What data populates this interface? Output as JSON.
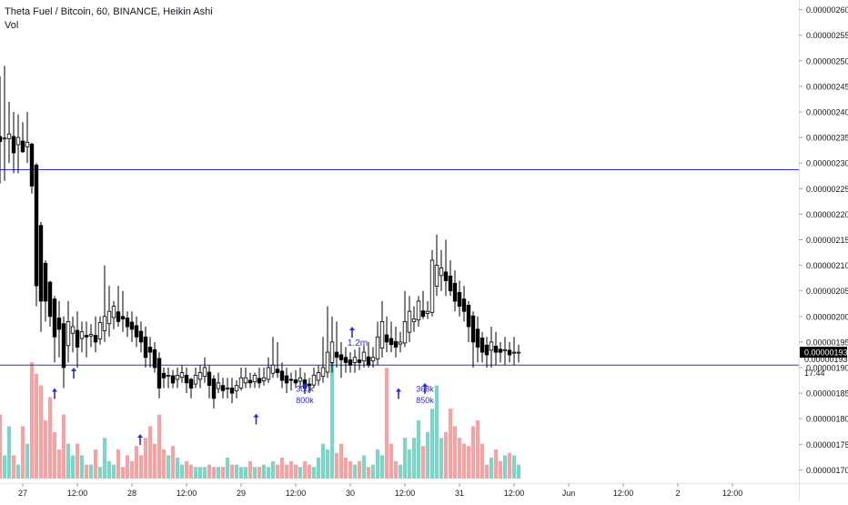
{
  "legend": {
    "title": "Theta Fuel / Bitcoin, 60, BINANCE, Heikin Ashi",
    "volume_label": "Vol"
  },
  "colors": {
    "up": "#ffffff",
    "down": "#000000",
    "wick": "#000000",
    "vol_up": "#7fd4c7",
    "vol_down": "#f2a3a3",
    "hline": "#2f2fd8",
    "arrow": "#2b2bd6",
    "annotation": "#2b2bd6",
    "axis_text": "#131722",
    "price_tag_bg": "#000000",
    "price_tag_text": "#ffffff"
  },
  "chart_data": {
    "type": "candlestick",
    "y_axis": {
      "range": [
        1.69e-06,
        2.61e-06
      ],
      "ticks": [
        "0.00000170",
        "0.00000175",
        "0.00000180",
        "0.00000185",
        "0.00000190",
        "0.00000195",
        "0.00000200",
        "0.00000205",
        "0.00000210",
        "0.00000215",
        "0.00000220",
        "0.00000225",
        "0.00000230",
        "0.00000235",
        "0.00000240",
        "0.00000245",
        "0.00000250",
        "0.00000255",
        "0.00000260"
      ]
    },
    "x_axis": {
      "hours_visible": 152,
      "ticks": [
        {
          "hour": 6,
          "label": "27"
        },
        {
          "hour": 18,
          "label": "12:00"
        },
        {
          "hour": 30,
          "label": "28"
        },
        {
          "hour": 42,
          "label": "12:00"
        },
        {
          "hour": 54,
          "label": "29"
        },
        {
          "hour": 66,
          "label": "12:00"
        },
        {
          "hour": 78,
          "label": "30"
        },
        {
          "hour": 90,
          "label": "12:00"
        },
        {
          "hour": 102,
          "label": "31"
        },
        {
          "hour": 114,
          "label": "12:00"
        },
        {
          "hour": 126,
          "label": "Jun"
        },
        {
          "hour": 138,
          "label": "12:00"
        },
        {
          "hour": 150,
          "label": "2"
        },
        {
          "hour": 162,
          "label": "12:00"
        }
      ]
    },
    "price_labels": [
      {
        "value": 1.93e-06,
        "label": "0.00000193",
        "type": "last-price"
      },
      {
        "value": 1.917e-06,
        "label": "0.00000193",
        "type": "countdown-price"
      },
      {
        "value": 1.89e-06,
        "label": "17:44",
        "type": "countdown"
      }
    ],
    "horizontal_lines": [
      2.287e-06,
      1.905e-06
    ],
    "annotations": [
      {
        "hour": 13.0,
        "price": 1.86e-06,
        "direction": "up",
        "text": ""
      },
      {
        "hour": 17.2,
        "price": 1.9e-06,
        "direction": "up",
        "text": ""
      },
      {
        "hour": 31.8,
        "price": 1.77e-06,
        "direction": "up",
        "text": ""
      },
      {
        "hour": 57.3,
        "price": 1.81e-06,
        "direction": "up",
        "text": ""
      },
      {
        "hour": 68.0,
        "price": 1.87e-06,
        "direction": "up",
        "text": "800k"
      },
      {
        "hour": 68.0,
        "price": 1.86e-06,
        "direction": "none",
        "text": "300k"
      },
      {
        "hour": 78.4,
        "price": 1.98e-06,
        "direction": "up",
        "text": ""
      },
      {
        "hour": 79.6,
        "price": 1.95e-06,
        "direction": "none",
        "text": "1.2m"
      },
      {
        "hour": 88.6,
        "price": 1.86e-06,
        "direction": "up",
        "text": ""
      },
      {
        "hour": 94.4,
        "price": 1.87e-06,
        "direction": "up",
        "text": "850k"
      },
      {
        "hour": 94.4,
        "price": 1.86e-06,
        "direction": "none",
        "text": "368k"
      }
    ],
    "volume_max": 100,
    "candles": [
      {
        "o": 2.352,
        "h": 2.47,
        "l": 2.26,
        "c": 2.342,
        "v": 55
      },
      {
        "o": 2.347,
        "h": 2.49,
        "l": 2.265,
        "c": 2.349,
        "v": 20
      },
      {
        "o": 2.348,
        "h": 2.42,
        "l": 2.3,
        "c": 2.357,
        "v": 45
      },
      {
        "o": 2.352,
        "h": 2.4,
        "l": 2.28,
        "c": 2.32,
        "v": 20
      },
      {
        "o": 2.336,
        "h": 2.395,
        "l": 2.28,
        "c": 2.35,
        "v": 12
      },
      {
        "o": 2.343,
        "h": 2.38,
        "l": 2.32,
        "c": 2.322,
        "v": 45
      },
      {
        "o": 2.332,
        "h": 2.4,
        "l": 2.3,
        "c": 2.341,
        "v": 30
      },
      {
        "o": 2.337,
        "h": 2.34,
        "l": 2.24,
        "c": 2.255,
        "v": 100
      },
      {
        "o": 2.296,
        "h": 2.3,
        "l": 2.02,
        "c": 2.06,
        "v": 90
      },
      {
        "o": 2.178,
        "h": 2.185,
        "l": 1.97,
        "c": 2.03,
        "v": 80
      },
      {
        "o": 2.104,
        "h": 2.11,
        "l": 1.99,
        "c": 2.03,
        "v": 50
      },
      {
        "o": 2.067,
        "h": 2.07,
        "l": 1.98,
        "c": 2.0,
        "v": 70
      },
      {
        "o": 2.034,
        "h": 2.04,
        "l": 1.91,
        "c": 1.96,
        "v": 40
      },
      {
        "o": 1.997,
        "h": 2.03,
        "l": 1.92,
        "c": 1.975,
        "v": 25
      },
      {
        "o": 1.986,
        "h": 2.0,
        "l": 1.86,
        "c": 1.9,
        "v": 55
      },
      {
        "o": 1.943,
        "h": 2.03,
        "l": 1.91,
        "c": 1.99,
        "v": 30
      },
      {
        "o": 1.967,
        "h": 2.0,
        "l": 1.93,
        "c": 1.98,
        "v": 20
      },
      {
        "o": 1.973,
        "h": 2.01,
        "l": 1.9,
        "c": 1.94,
        "v": 30
      },
      {
        "o": 1.957,
        "h": 1.99,
        "l": 1.93,
        "c": 1.97,
        "v": 20
      },
      {
        "o": 1.963,
        "h": 1.99,
        "l": 1.92,
        "c": 1.96,
        "v": 12
      },
      {
        "o": 1.962,
        "h": 1.985,
        "l": 1.94,
        "c": 1.965,
        "v": 12
      },
      {
        "o": 1.963,
        "h": 2.0,
        "l": 1.93,
        "c": 1.95,
        "v": 25
      },
      {
        "o": 1.956,
        "h": 2.0,
        "l": 1.945,
        "c": 1.988,
        "v": 10
      },
      {
        "o": 1.972,
        "h": 2.1,
        "l": 1.95,
        "c": 2.0,
        "v": 35
      },
      {
        "o": 1.986,
        "h": 2.06,
        "l": 1.96,
        "c": 2.01,
        "v": 15
      },
      {
        "o": 1.998,
        "h": 2.03,
        "l": 1.975,
        "c": 2.02,
        "v": 12
      },
      {
        "o": 2.009,
        "h": 2.06,
        "l": 1.98,
        "c": 1.99,
        "v": 25
      },
      {
        "o": 2.0,
        "h": 2.05,
        "l": 1.97,
        "c": 1.995,
        "v": 10
      },
      {
        "o": 1.997,
        "h": 2.01,
        "l": 1.96,
        "c": 1.98,
        "v": 20
      },
      {
        "o": 1.989,
        "h": 2.01,
        "l": 1.95,
        "c": 1.975,
        "v": 15
      },
      {
        "o": 1.982,
        "h": 2.0,
        "l": 1.94,
        "c": 1.96,
        "v": 28
      },
      {
        "o": 1.971,
        "h": 1.99,
        "l": 1.93,
        "c": 1.95,
        "v": 20
      },
      {
        "o": 1.96,
        "h": 1.98,
        "l": 1.9,
        "c": 1.92,
        "v": 35
      },
      {
        "o": 1.94,
        "h": 1.96,
        "l": 1.9,
        "c": 1.93,
        "v": 45
      },
      {
        "o": 1.935,
        "h": 1.95,
        "l": 1.89,
        "c": 1.9,
        "v": 30
      },
      {
        "o": 1.918,
        "h": 1.93,
        "l": 1.84,
        "c": 1.86,
        "v": 55
      },
      {
        "o": 1.889,
        "h": 1.9,
        "l": 1.86,
        "c": 1.88,
        "v": 25
      },
      {
        "o": 1.884,
        "h": 1.9,
        "l": 1.86,
        "c": 1.885,
        "v": 20
      },
      {
        "o": 1.884,
        "h": 1.895,
        "l": 1.86,
        "c": 1.87,
        "v": 28
      },
      {
        "o": 1.877,
        "h": 1.9,
        "l": 1.86,
        "c": 1.885,
        "v": 18
      },
      {
        "o": 1.881,
        "h": 1.905,
        "l": 1.87,
        "c": 1.89,
        "v": 12
      },
      {
        "o": 1.885,
        "h": 1.9,
        "l": 1.85,
        "c": 1.87,
        "v": 15
      },
      {
        "o": 1.877,
        "h": 1.88,
        "l": 1.84,
        "c": 1.86,
        "v": 12
      },
      {
        "o": 1.868,
        "h": 1.9,
        "l": 1.86,
        "c": 1.885,
        "v": 10
      },
      {
        "o": 1.877,
        "h": 1.905,
        "l": 1.86,
        "c": 1.89,
        "v": 10
      },
      {
        "o": 1.883,
        "h": 1.92,
        "l": 1.87,
        "c": 1.9,
        "v": 10
      },
      {
        "o": 1.891,
        "h": 1.905,
        "l": 1.84,
        "c": 1.865,
        "v": 12
      },
      {
        "o": 1.878,
        "h": 1.885,
        "l": 1.82,
        "c": 1.84,
        "v": 10
      },
      {
        "o": 1.859,
        "h": 1.89,
        "l": 1.85,
        "c": 1.87,
        "v": 10
      },
      {
        "o": 1.865,
        "h": 1.88,
        "l": 1.84,
        "c": 1.855,
        "v": 10
      },
      {
        "o": 1.86,
        "h": 1.88,
        "l": 1.84,
        "c": 1.86,
        "v": 18
      },
      {
        "o": 1.86,
        "h": 1.88,
        "l": 1.83,
        "c": 1.85,
        "v": 12
      },
      {
        "o": 1.855,
        "h": 1.875,
        "l": 1.84,
        "c": 1.865,
        "v": 12
      },
      {
        "o": 1.86,
        "h": 1.9,
        "l": 1.855,
        "c": 1.88,
        "v": 10
      },
      {
        "o": 1.87,
        "h": 1.9,
        "l": 1.86,
        "c": 1.88,
        "v": 10
      },
      {
        "o": 1.875,
        "h": 1.89,
        "l": 1.86,
        "c": 1.87,
        "v": 15
      },
      {
        "o": 1.872,
        "h": 1.89,
        "l": 1.86,
        "c": 1.885,
        "v": 10
      },
      {
        "o": 1.879,
        "h": 1.9,
        "l": 1.86,
        "c": 1.87,
        "v": 10
      },
      {
        "o": 1.874,
        "h": 1.9,
        "l": 1.865,
        "c": 1.88,
        "v": 12
      },
      {
        "o": 1.877,
        "h": 1.92,
        "l": 1.87,
        "c": 1.9,
        "v": 10
      },
      {
        "o": 1.889,
        "h": 1.96,
        "l": 1.88,
        "c": 1.905,
        "v": 15
      },
      {
        "o": 1.897,
        "h": 1.95,
        "l": 1.88,
        "c": 1.89,
        "v": 12
      },
      {
        "o": 1.893,
        "h": 1.91,
        "l": 1.86,
        "c": 1.875,
        "v": 18
      },
      {
        "o": 1.884,
        "h": 1.9,
        "l": 1.85,
        "c": 1.87,
        "v": 12
      },
      {
        "o": 1.877,
        "h": 1.89,
        "l": 1.855,
        "c": 1.875,
        "v": 15
      },
      {
        "o": 1.876,
        "h": 1.895,
        "l": 1.86,
        "c": 1.87,
        "v": 12
      },
      {
        "o": 1.873,
        "h": 1.9,
        "l": 1.86,
        "c": 1.88,
        "v": 10
      },
      {
        "o": 1.876,
        "h": 1.89,
        "l": 1.855,
        "c": 1.86,
        "v": 15
      },
      {
        "o": 1.868,
        "h": 1.88,
        "l": 1.85,
        "c": 1.865,
        "v": 12
      },
      {
        "o": 1.866,
        "h": 1.9,
        "l": 1.86,
        "c": 1.885,
        "v": 10
      },
      {
        "o": 1.875,
        "h": 1.905,
        "l": 1.865,
        "c": 1.89,
        "v": 18
      },
      {
        "o": 1.883,
        "h": 1.96,
        "l": 1.87,
        "c": 1.9,
        "v": 30
      },
      {
        "o": 1.891,
        "h": 2.02,
        "l": 1.88,
        "c": 1.93,
        "v": 25
      },
      {
        "o": 1.91,
        "h": 2.0,
        "l": 1.89,
        "c": 1.95,
        "v": 100
      },
      {
        "o": 1.93,
        "h": 1.99,
        "l": 1.9,
        "c": 1.92,
        "v": 22
      },
      {
        "o": 1.925,
        "h": 1.95,
        "l": 1.88,
        "c": 1.915,
        "v": 30
      },
      {
        "o": 1.92,
        "h": 1.94,
        "l": 1.89,
        "c": 1.91,
        "v": 18
      },
      {
        "o": 1.915,
        "h": 1.93,
        "l": 1.89,
        "c": 1.905,
        "v": 15
      },
      {
        "o": 1.91,
        "h": 1.935,
        "l": 1.89,
        "c": 1.92,
        "v": 12
      },
      {
        "o": 1.915,
        "h": 1.94,
        "l": 1.895,
        "c": 1.91,
        "v": 15
      },
      {
        "o": 1.913,
        "h": 1.945,
        "l": 1.9,
        "c": 1.93,
        "v": 20
      },
      {
        "o": 1.921,
        "h": 1.95,
        "l": 1.9,
        "c": 1.905,
        "v": 10
      },
      {
        "o": 1.913,
        "h": 1.94,
        "l": 1.9,
        "c": 1.92,
        "v": 12
      },
      {
        "o": 1.917,
        "h": 1.99,
        "l": 1.905,
        "c": 1.96,
        "v": 25
      },
      {
        "o": 1.938,
        "h": 2.03,
        "l": 1.92,
        "c": 1.99,
        "v": 20
      },
      {
        "o": 1.964,
        "h": 2.0,
        "l": 1.93,
        "c": 1.95,
        "v": 95
      },
      {
        "o": 1.957,
        "h": 1.99,
        "l": 1.93,
        "c": 1.945,
        "v": 30
      },
      {
        "o": 1.951,
        "h": 1.98,
        "l": 1.92,
        "c": 1.94,
        "v": 15
      },
      {
        "o": 1.946,
        "h": 1.97,
        "l": 1.93,
        "c": 1.95,
        "v": 12
      },
      {
        "o": 1.948,
        "h": 2.05,
        "l": 1.94,
        "c": 1.99,
        "v": 35
      },
      {
        "o": 1.969,
        "h": 2.04,
        "l": 1.95,
        "c": 2.01,
        "v": 25
      },
      {
        "o": 1.99,
        "h": 2.02,
        "l": 1.97,
        "c": 1.995,
        "v": 35
      },
      {
        "o": 1.993,
        "h": 2.04,
        "l": 1.98,
        "c": 2.03,
        "v": 50
      },
      {
        "o": 2.011,
        "h": 2.05,
        "l": 1.995,
        "c": 2.0,
        "v": 28
      },
      {
        "o": 2.006,
        "h": 2.03,
        "l": 1.995,
        "c": 2.01,
        "v": 40
      },
      {
        "o": 2.008,
        "h": 2.13,
        "l": 2.0,
        "c": 2.11,
        "v": 60
      },
      {
        "o": 2.059,
        "h": 2.16,
        "l": 2.04,
        "c": 2.1,
        "v": 80
      },
      {
        "o": 2.08,
        "h": 2.13,
        "l": 2.05,
        "c": 2.095,
        "v": 35
      },
      {
        "o": 2.087,
        "h": 2.15,
        "l": 2.04,
        "c": 2.07,
        "v": 40
      },
      {
        "o": 2.079,
        "h": 2.11,
        "l": 2.04,
        "c": 2.05,
        "v": 60
      },
      {
        "o": 2.065,
        "h": 2.09,
        "l": 2.01,
        "c": 2.03,
        "v": 45
      },
      {
        "o": 2.047,
        "h": 2.07,
        "l": 2.0,
        "c": 2.02,
        "v": 35
      },
      {
        "o": 2.034,
        "h": 2.06,
        "l": 1.99,
        "c": 2.01,
        "v": 30
      },
      {
        "o": 2.022,
        "h": 2.03,
        "l": 1.95,
        "c": 1.98,
        "v": 28
      },
      {
        "o": 2.001,
        "h": 2.01,
        "l": 1.9,
        "c": 1.95,
        "v": 45
      },
      {
        "o": 1.975,
        "h": 2.0,
        "l": 1.91,
        "c": 1.94,
        "v": 50
      },
      {
        "o": 1.958,
        "h": 1.97,
        "l": 1.91,
        "c": 1.93,
        "v": 30
      },
      {
        "o": 1.944,
        "h": 1.96,
        "l": 1.9,
        "c": 1.925,
        "v": 12
      },
      {
        "o": 1.934,
        "h": 1.98,
        "l": 1.9,
        "c": 1.95,
        "v": 18
      },
      {
        "o": 1.942,
        "h": 1.97,
        "l": 1.905,
        "c": 1.93,
        "v": 25
      },
      {
        "o": 1.936,
        "h": 1.95,
        "l": 1.91,
        "c": 1.93,
        "v": 15
      },
      {
        "o": 1.933,
        "h": 1.96,
        "l": 1.905,
        "c": 1.935,
        "v": 20
      },
      {
        "o": 1.934,
        "h": 1.95,
        "l": 1.91,
        "c": 1.925,
        "v": 22
      },
      {
        "o": 1.93,
        "h": 1.96,
        "l": 1.905,
        "c": 1.93,
        "v": 20
      },
      {
        "o": 1.93,
        "h": 1.945,
        "l": 1.91,
        "c": 1.93,
        "v": 12
      }
    ]
  }
}
